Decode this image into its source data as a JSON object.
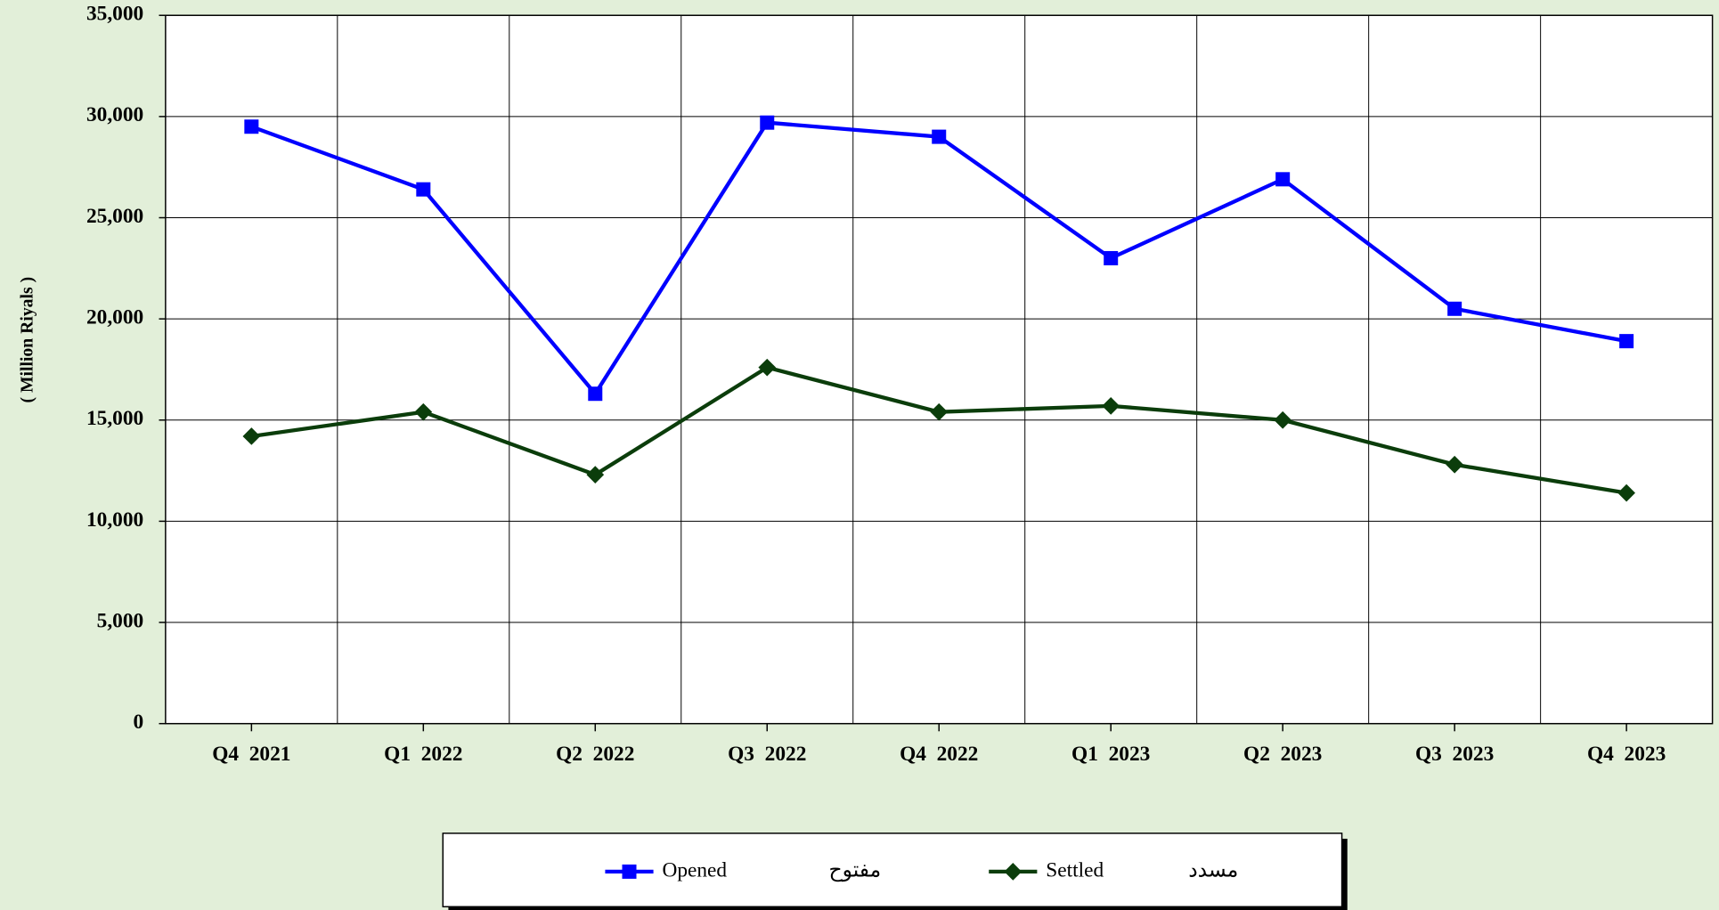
{
  "chart_data": {
    "type": "line",
    "y_label": "( Million Riyals )",
    "categories": [
      "Q4  2021",
      "Q1  2022",
      "Q2  2022",
      "Q3  2022",
      "Q4  2022",
      "Q1  2023",
      "Q2  2023",
      "Q3  2023",
      "Q4  2023"
    ],
    "series": [
      {
        "name": "Opened",
        "name_ar": "مفتوح",
        "color": "#0000ff",
        "marker": "square",
        "values": [
          29500,
          26400,
          16300,
          29700,
          29000,
          23000,
          26900,
          20500,
          18900
        ]
      },
      {
        "name": "Settled",
        "name_ar": "مسدد",
        "color": "#0b3d0b",
        "marker": "diamond",
        "values": [
          14200,
          15400,
          12300,
          17600,
          15400,
          15700,
          15000,
          12800,
          11400
        ]
      }
    ],
    "ylim": [
      0,
      35000
    ],
    "yticks": [
      0,
      {
        "value": 5000,
        "label": "5,000"
      },
      {
        "value": 10000,
        "label": "10,000"
      },
      {
        "value": 15000,
        "label": "15,000"
      },
      {
        "value": 20000,
        "label": "20,000"
      },
      {
        "value": 25000,
        "label": "25,000"
      },
      {
        "value": 30000,
        "label": "30,000"
      },
      {
        "value": 35000,
        "label": "35,000"
      }
    ],
    "grid": true,
    "legend": "bottom"
  }
}
